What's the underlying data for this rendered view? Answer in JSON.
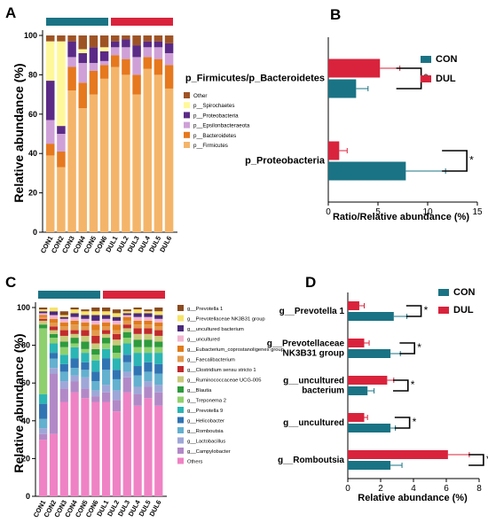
{
  "colors": {
    "con": "#1a7384",
    "dul": "#d9233c"
  },
  "chart_data": [
    {
      "panel": "A",
      "type": "bar",
      "stacked": true,
      "ylabel": "Relative abundance (%)",
      "ylim": [
        0,
        100
      ],
      "yticks": [
        0,
        20,
        40,
        60,
        80,
        100
      ],
      "groups": [
        {
          "label": "CON",
          "color": "#1a7384"
        },
        {
          "label": "DUL",
          "color": "#d9233c"
        }
      ],
      "categories": [
        "CON1",
        "CON2",
        "CON3",
        "CON4",
        "CON5",
        "CON6",
        "DUL1",
        "DUL2",
        "DUL3",
        "DUL4",
        "DUL5",
        "DUL6"
      ],
      "legend_position": "right",
      "series": [
        {
          "name": "p__Firmicutes",
          "color": "#f4b56a",
          "values": [
            39,
            33,
            72,
            63,
            70,
            78,
            84,
            80,
            70,
            83,
            80,
            73
          ]
        },
        {
          "name": "p__Bacteroidetes",
          "color": "#e6781e",
          "values": [
            6,
            8,
            12,
            13,
            12,
            7,
            6,
            8,
            10,
            6,
            8,
            12
          ]
        },
        {
          "name": "p__Epsilonbacteraeota",
          "color": "#cfa0d8",
          "values": [
            12,
            9,
            5,
            10,
            4,
            2,
            4,
            6,
            9,
            5,
            6,
            6
          ]
        },
        {
          "name": "p__Proteobacteria",
          "color": "#5b2a86",
          "values": [
            20,
            4,
            8,
            5,
            8,
            5,
            3,
            4,
            6,
            3,
            3,
            5
          ]
        },
        {
          "name": "p__Spirochaetes",
          "color": "#fff89a",
          "values": [
            20,
            43,
            0,
            2,
            0,
            2,
            0,
            0,
            0,
            0,
            0,
            0
          ]
        },
        {
          "name": "Other",
          "color": "#9e5325",
          "values": [
            3,
            3,
            3,
            7,
            6,
            6,
            3,
            2,
            5,
            3,
            3,
            4
          ]
        }
      ]
    },
    {
      "panel": "B",
      "type": "bar",
      "orientation": "horizontal",
      "xlabel": "Ratio/Relative abundance (%)",
      "xlim": [
        0,
        15
      ],
      "xticks": [
        0,
        5,
        10,
        15
      ],
      "categories": [
        "p_Firmicutes/p_Bacteroidetes",
        "p_Proteobacteria"
      ],
      "series": [
        {
          "name": "CON",
          "color": "#1a7384",
          "values": [
            2.8,
            7.8
          ],
          "errors": [
            1.2,
            4.0
          ]
        },
        {
          "name": "DUL",
          "color": "#d9233c",
          "values": [
            5.2,
            1.1
          ],
          "errors": [
            2.0,
            0.8
          ]
        }
      ],
      "significance": [
        "*",
        "*"
      ],
      "legend_position": "top-right"
    },
    {
      "panel": "C",
      "type": "bar",
      "stacked": true,
      "ylabel": "Relative abundance (%)",
      "ylim": [
        0,
        100
      ],
      "yticks": [
        0,
        20,
        40,
        60,
        80,
        100
      ],
      "groups": [
        {
          "label": "CON",
          "color": "#1a7384"
        },
        {
          "label": "DUL",
          "color": "#d9233c"
        }
      ],
      "categories": [
        "CON1",
        "CON2",
        "CON3",
        "CON4",
        "CON5",
        "CON6",
        "DUL1",
        "DUL2",
        "DUL3",
        "DUL4",
        "DUL5",
        "DUL6"
      ],
      "legend_position": "right",
      "series": [
        {
          "name": "Others",
          "color": "#ef82c4",
          "values": [
            30,
            33,
            50,
            55,
            52,
            50,
            50,
            45,
            55,
            48,
            52,
            48
          ]
        },
        {
          "name": "g__Campylobacter",
          "color": "#b289c7",
          "values": [
            3,
            32,
            7,
            6,
            5,
            3,
            5,
            6,
            8,
            6,
            6,
            7
          ]
        },
        {
          "name": "g__Lactobacillus",
          "color": "#9fa7d8",
          "values": [
            3,
            3,
            4,
            3,
            6,
            3,
            4,
            5,
            3,
            4,
            3,
            4
          ]
        },
        {
          "name": "g__Romboutsia",
          "color": "#63b0cf",
          "values": [
            5,
            5,
            5,
            4,
            4,
            5,
            8,
            6,
            5,
            6,
            5,
            6
          ]
        },
        {
          "name": "g__Helicobacter",
          "color": "#3174b3",
          "values": [
            8,
            3,
            4,
            5,
            4,
            5,
            6,
            5,
            4,
            5,
            5,
            5
          ]
        },
        {
          "name": "g__Prevotella 9",
          "color": "#2bb5b5",
          "values": [
            5,
            5,
            5,
            6,
            5,
            6,
            5,
            6,
            6,
            7,
            5,
            6
          ]
        },
        {
          "name": "g__Treponema 2",
          "color": "#8fd06e",
          "values": [
            35,
            3,
            4,
            2,
            2,
            3,
            3,
            3,
            3,
            3,
            3,
            3
          ]
        },
        {
          "name": "g__Blautia",
          "color": "#2e9b3d",
          "values": [
            2,
            2,
            3,
            3,
            4,
            3,
            3,
            4,
            3,
            4,
            4,
            3
          ]
        },
        {
          "name": "g__Ruminococcaceae UCG-005",
          "color": "#c9c97a",
          "values": [
            2,
            2,
            3,
            2,
            3,
            3,
            2,
            3,
            2,
            3,
            3,
            3
          ]
        },
        {
          "name": "g__Clostridium sensu stricto 1",
          "color": "#c12b2b",
          "values": [
            1,
            2,
            3,
            2,
            3,
            4,
            2,
            3,
            2,
            3,
            3,
            3
          ]
        },
        {
          "name": "g__Faecalibacterium",
          "color": "#e39a4d",
          "values": [
            1,
            2,
            2,
            3,
            2,
            3,
            2,
            2,
            2,
            2,
            2,
            2
          ]
        },
        {
          "name": "g__Eubacterium_coprostanoligenes group",
          "color": "#e07b1a",
          "values": [
            1,
            2,
            2,
            2,
            2,
            3,
            2,
            3,
            2,
            2,
            2,
            2
          ]
        },
        {
          "name": "g__uncultured",
          "color": "#f2b5cf",
          "values": [
            1,
            2,
            2,
            2,
            2,
            2,
            2,
            2,
            1,
            2,
            2,
            2
          ]
        },
        {
          "name": "g__uncultured bacterium",
          "color": "#4a2a7a",
          "values": [
            1,
            2,
            1,
            2,
            2,
            3,
            2,
            2,
            1,
            2,
            2,
            2
          ]
        },
        {
          "name": "g__Prevotellaceae NK3B31 group",
          "color": "#f6e36a",
          "values": [
            1,
            2,
            1,
            2,
            2,
            2,
            2,
            2,
            1,
            2,
            1,
            2
          ]
        },
        {
          "name": "g__Prevotella 1",
          "color": "#8a4b20",
          "values": [
            1,
            2,
            2,
            2,
            1,
            2,
            2,
            2,
            1,
            2,
            1,
            2
          ]
        }
      ]
    },
    {
      "panel": "D",
      "type": "bar",
      "orientation": "horizontal",
      "xlabel": "Relative abundance (%)",
      "xlim": [
        0,
        8
      ],
      "xticks": [
        0,
        2,
        4,
        6,
        8
      ],
      "categories": [
        "g__Prevotella 1",
        "g__Prevotellaceae NK3B31 group",
        "g__uncultured bacterium",
        "g__uncultured",
        "g__Romboutsia"
      ],
      "category_lines": [
        [
          "g__Prevotella 1"
        ],
        [
          "g__Prevotellaceae",
          "NK3B31 group"
        ],
        [
          "g__uncultured",
          "bacterium"
        ],
        [
          "g__uncultured"
        ],
        [
          "g__Romboutsia"
        ]
      ],
      "series": [
        {
          "name": "CON",
          "color": "#1a7384",
          "values": [
            2.8,
            2.6,
            1.2,
            2.6,
            2.6
          ],
          "errors": [
            0.8,
            0.6,
            0.4,
            0.3,
            0.7
          ]
        },
        {
          "name": "DUL",
          "color": "#d9233c",
          "values": [
            0.7,
            1.0,
            2.4,
            1.0,
            6.1
          ],
          "errors": [
            0.3,
            0.3,
            0.4,
            0.2,
            1.3
          ]
        }
      ],
      "significance": [
        "*",
        "*",
        "*",
        "*",
        "*"
      ],
      "legend_position": "top-right"
    }
  ],
  "panels": {
    "a": {
      "letter": "A",
      "group1": "CON",
      "group2": "DUL",
      "ylabel": "Relative abundance (%)"
    },
    "b": {
      "letter": "B",
      "xlabel": "Ratio/Relative abundance (%)"
    },
    "c": {
      "letter": "C",
      "group1": "CON",
      "group2": "DUL",
      "ylabel": "Relative abundance (%)"
    },
    "d": {
      "letter": "D",
      "xlabel": "Relative abundance (%)"
    }
  }
}
